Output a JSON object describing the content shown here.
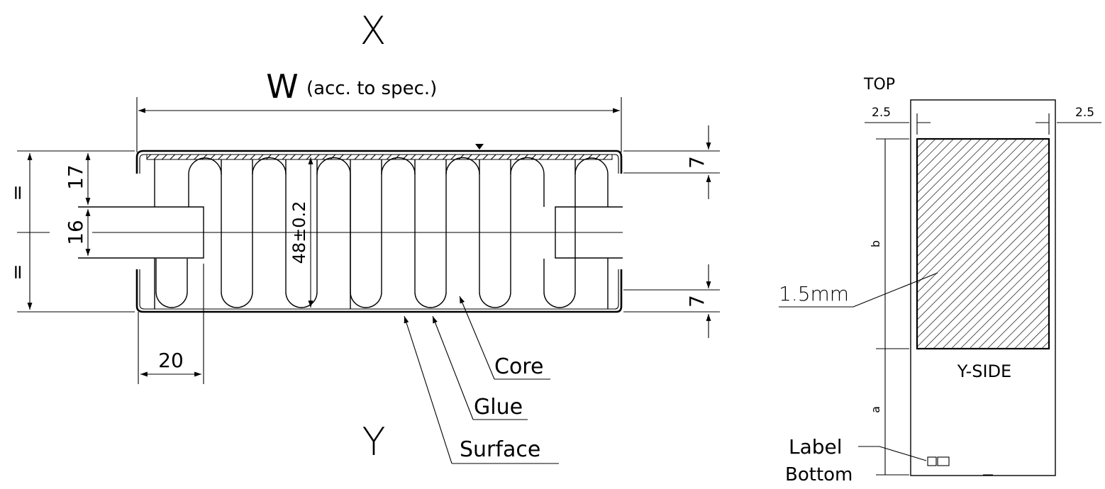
{
  "front_view": {
    "top_letter": "X",
    "bottom_letter": "Y",
    "width_symbol": "W",
    "width_note": "(acc. to spec.)",
    "dim_top_slot": "17",
    "dim_slot": "16",
    "dim_equal_top": "=",
    "dim_equal_bottom": "=",
    "dim_height": "48±0.2",
    "dim_slot_depth": "20",
    "dim_right_top": "7",
    "dim_right_bottom": "7",
    "label_core": "Core",
    "label_glue": "Glue",
    "label_surface": "Surface"
  },
  "side_view": {
    "top_label": "TOP",
    "margin_left": "2.5",
    "margin_right": "2.5",
    "dim_b": "b",
    "dim_a": "a",
    "thickness": "1.5mm",
    "side_label": "Y-SIDE",
    "label_line1": "Label",
    "label_line2": "Bottom"
  }
}
